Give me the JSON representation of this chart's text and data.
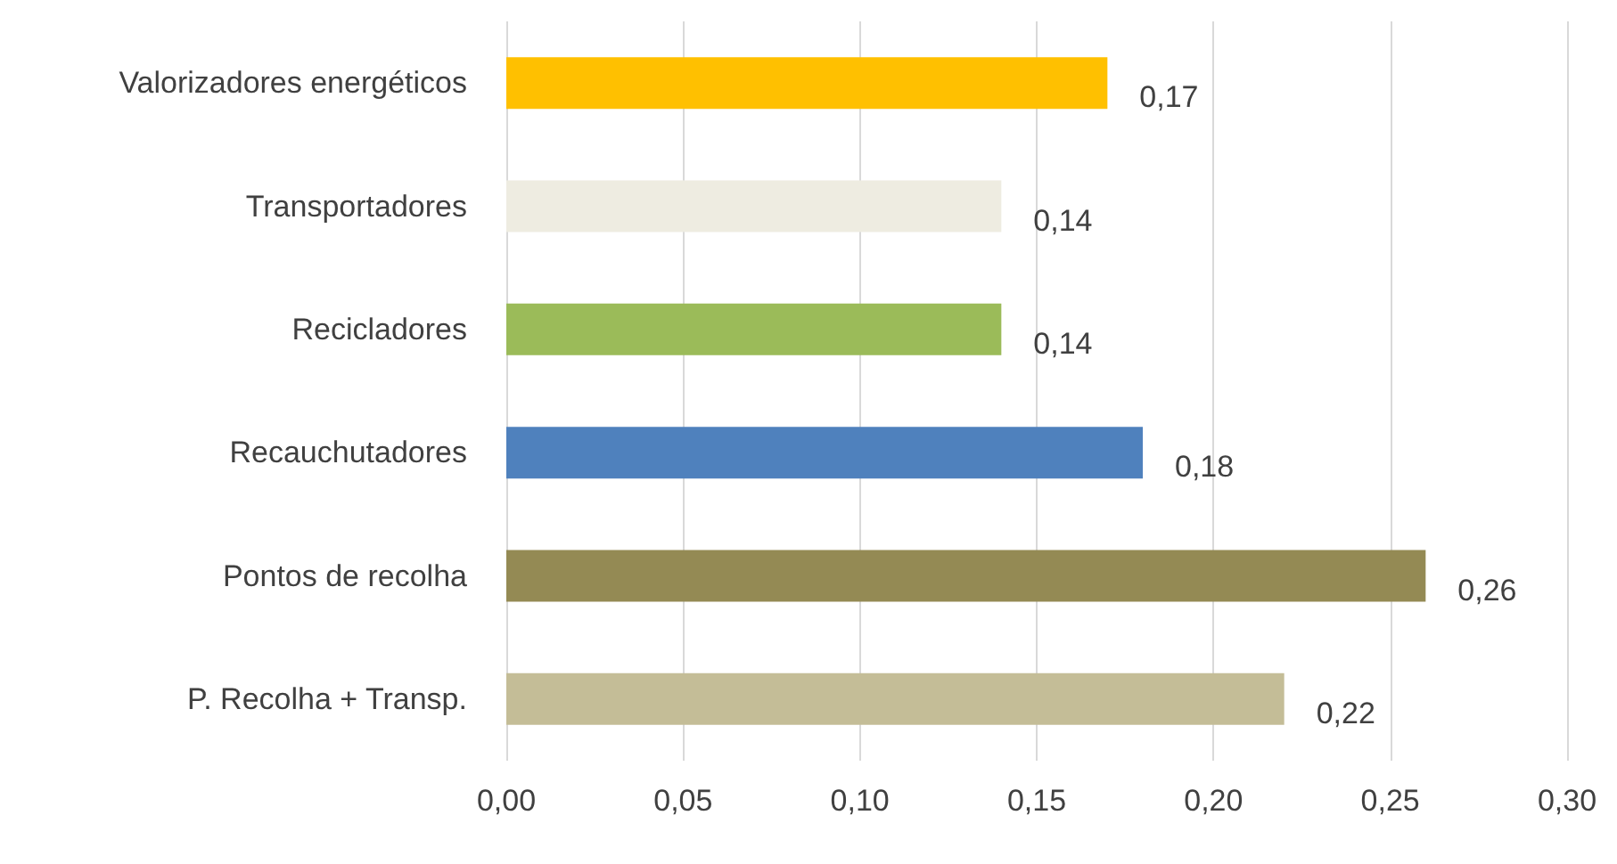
{
  "chart_data": {
    "type": "bar",
    "orientation": "horizontal",
    "categories": [
      "Valorizadores energéticos",
      "Transportadores",
      "Recicladores",
      "Recauchutadores",
      "Pontos de recolha",
      "P. Recolha + Transp."
    ],
    "values": [
      0.17,
      0.14,
      0.14,
      0.18,
      0.26,
      0.22
    ],
    "colors": [
      "#ffc000",
      "#eeece1",
      "#9bbb59",
      "#4f81bd",
      "#948a54",
      "#c4bd97"
    ],
    "value_labels": [
      "0,17",
      "0,14",
      "0,14",
      "0,18",
      "0,26",
      "0,22"
    ],
    "xlim": [
      0,
      0.3
    ],
    "xticks": [
      {
        "value": 0,
        "label": "0,00"
      },
      {
        "value": 0.05,
        "label": "0,05"
      },
      {
        "value": 0.1,
        "label": "0,10"
      },
      {
        "value": 0.15,
        "label": "0,15"
      },
      {
        "value": 0.2,
        "label": "0,20"
      },
      {
        "value": 0.25,
        "label": "0,25"
      },
      {
        "value": 0.3,
        "label": "0,30"
      }
    ],
    "grid": "x"
  }
}
